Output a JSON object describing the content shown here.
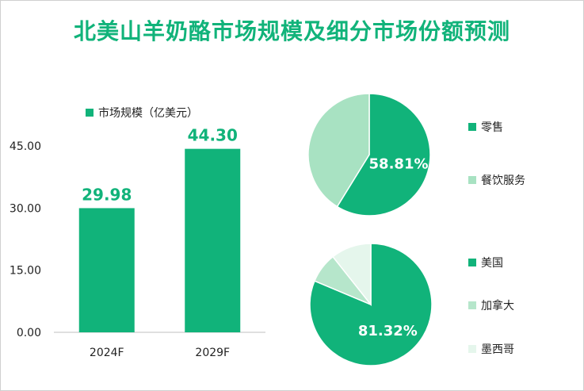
{
  "page": {
    "title": "北美山羊奶酪市场规模及细分市场份额预测"
  },
  "chart_data": [
    {
      "type": "bar",
      "title": "",
      "legend": "市场规模（亿美元）",
      "categories": [
        "2024F",
        "2029F"
      ],
      "values": [
        29.98,
        44.3
      ],
      "value_labels": [
        "29.98",
        "44.30"
      ],
      "y_ticks": [
        "0.00",
        "15.00",
        "30.00",
        "45.00"
      ],
      "ylim": [
        0,
        45
      ],
      "color": "#11b37a",
      "grid": false
    },
    {
      "type": "pie",
      "title": "",
      "legend_position": "right",
      "slices": [
        {
          "name": "零售",
          "value": 58.81,
          "color": "#11b37a"
        },
        {
          "name": "餐饮服务",
          "value": 41.19,
          "color": "#a8e2c2"
        }
      ],
      "label": "58.81%"
    },
    {
      "type": "pie",
      "title": "",
      "legend_position": "right",
      "slices": [
        {
          "name": "美国",
          "value": 81.32,
          "color": "#11b37a"
        },
        {
          "name": "加拿大",
          "value": 8.0,
          "color": "#b6e6cb"
        },
        {
          "name": "墨西哥",
          "value": 10.68,
          "color": "#e5f6ec"
        }
      ],
      "label": "81.32%"
    }
  ]
}
